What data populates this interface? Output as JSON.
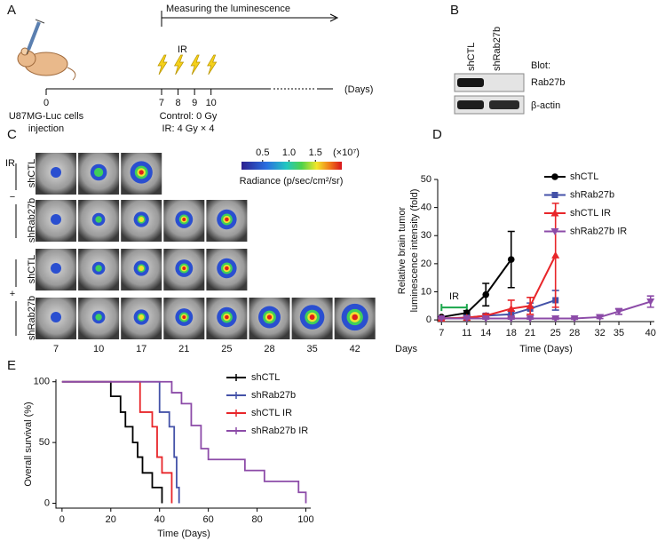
{
  "panel_labels": [
    "A",
    "B",
    "C",
    "D",
    "E"
  ],
  "timeline": {
    "header": "Measuring the luminescence",
    "ir_label": "IR",
    "ticks": [
      0,
      7,
      8,
      9,
      10
    ],
    "unit": "(Days)",
    "injection": [
      "U87MG-Luc cells",
      "injection"
    ],
    "doses": [
      "Control: 0 Gy",
      "IR: 4 Gy × 4"
    ]
  },
  "blot": {
    "lanes": [
      "shCTL",
      "shRab27b"
    ],
    "heading": "Blot:",
    "proteins": [
      "Rab27b",
      "β-actin"
    ]
  },
  "imaging": {
    "ir_heading": "IR",
    "groups": [
      {
        "sign": "−",
        "rows": [
          {
            "label": "shCTL",
            "color": "#111111"
          },
          {
            "label": "shRab27b",
            "color": "#4452a8"
          }
        ]
      },
      {
        "sign": "+",
        "rows": [
          {
            "label": "shCTL",
            "color": "#e8262a"
          },
          {
            "label": "shRab27b",
            "color": "#8c4ba8"
          }
        ]
      }
    ],
    "days": [
      7,
      10,
      17,
      21,
      25,
      28,
      35,
      42
    ],
    "days_unit": "Days",
    "colorbar": {
      "clim": [
        0.1,
        2.0
      ],
      "ticks": [
        0.5,
        {
          "value": 1,
          "label": "1.0"
        },
        1.5
      ],
      "multiplier": "(×10⁷)",
      "label": "Radiance (p/sec/cm²/sr)"
    }
  },
  "chart_data": [
    {
      "type": "line",
      "xlabel": "Time (Days)",
      "ylabel": [
        "Relative brain tumor",
        "luminescence intensity (fold)"
      ],
      "annotation": "IR",
      "annotation_color": "#1aa64b",
      "xlim": [
        6.4,
        40.6
      ],
      "xticks": [
        7,
        11,
        14,
        18,
        21,
        25,
        28,
        32,
        35,
        40
      ],
      "ylim": [
        -0.6,
        50
      ],
      "yticks": [
        0,
        10,
        20,
        30,
        40,
        50
      ],
      "series": [
        {
          "name": "shCTL",
          "color": "#000000",
          "marker": "o",
          "x": [
            7,
            11,
            14,
            18
          ],
          "values": [
            1,
            2.5,
            9,
            21.5
          ],
          "errors": [
            0.3,
            0.8,
            4,
            10
          ]
        },
        {
          "name": "shRab27b",
          "color": "#4452a8",
          "marker": "s",
          "x": [
            7,
            11,
            14,
            18,
            21,
            25
          ],
          "values": [
            0.5,
            0.8,
            1.5,
            2,
            4,
            7
          ],
          "errors": [
            0.2,
            0.3,
            0.6,
            1.2,
            2,
            3.5
          ]
        },
        {
          "name": "shCTL IR",
          "color": "#e8262a",
          "marker": "^",
          "x": [
            7,
            11,
            14,
            18,
            21,
            25
          ],
          "values": [
            0.5,
            0.8,
            1.5,
            4,
            5,
            23
          ],
          "errors": [
            0.2,
            0.3,
            0.6,
            3,
            3,
            18.5
          ]
        },
        {
          "name": "shRab27b IR",
          "color": "#8c4ba8",
          "marker": "v",
          "x": [
            7,
            11,
            14,
            18,
            21,
            25,
            28,
            32,
            35,
            40
          ],
          "values": [
            0.5,
            0.5,
            0.5,
            0.5,
            0.5,
            0.5,
            0.5,
            1,
            3,
            6.5
          ],
          "errors": [
            0.1,
            0.1,
            0.2,
            0.2,
            0.2,
            0.3,
            0.3,
            0.5,
            1,
            2
          ]
        }
      ]
    },
    {
      "type": "step",
      "xlabel": "Time (Days)",
      "ylabel": "Overall survival (%)",
      "xlim": [
        -2.5,
        102
      ],
      "xticks": [
        0,
        20,
        40,
        60,
        80,
        100
      ],
      "ylim": [
        -4,
        102
      ],
      "yticks": [
        0,
        50,
        100
      ],
      "series": [
        {
          "name": "shCTL",
          "color": "#000000",
          "x": [
            0,
            20,
            24,
            26,
            29,
            31,
            33,
            37,
            41
          ],
          "values": [
            100,
            88,
            75,
            63,
            50,
            38,
            25,
            13,
            0
          ]
        },
        {
          "name": "shRab27b",
          "color": "#4452a8",
          "x": [
            0,
            40,
            44,
            46,
            47,
            48
          ],
          "values": [
            100,
            75,
            63,
            38,
            13,
            0
          ]
        },
        {
          "name": "shCTL IR",
          "color": "#e8262a",
          "x": [
            0,
            32,
            37,
            39,
            41,
            45
          ],
          "values": [
            100,
            75,
            63,
            38,
            25,
            0
          ]
        },
        {
          "name": "shRab27b IR",
          "color": "#8c4ba8",
          "x": [
            0,
            45,
            49,
            53,
            57,
            60,
            75,
            83,
            97,
            100
          ],
          "values": [
            100,
            91,
            82,
            64,
            45,
            36,
            27,
            18,
            9,
            0
          ]
        }
      ]
    }
  ]
}
